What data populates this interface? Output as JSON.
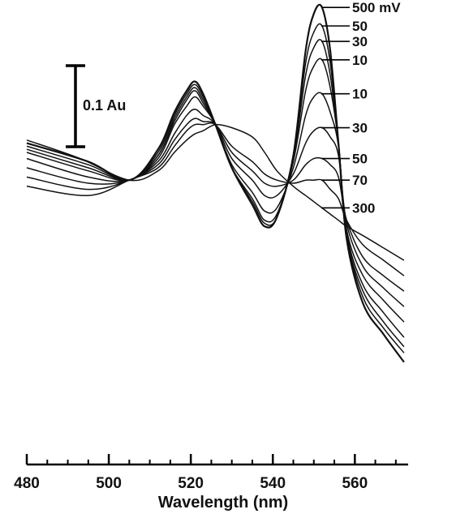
{
  "chart_data": {
    "type": "line",
    "title": "",
    "xlabel": "Wavelength (nm)",
    "ylabel": "",
    "xlim": [
      480,
      573
    ],
    "ylim": [
      -1.0,
      0.38
    ],
    "grid": false,
    "legend": "right-labels",
    "x_ticks": [
      480,
      500,
      520,
      540,
      560
    ],
    "scale_bar": {
      "label": "0.1 Au",
      "value": 0.1
    },
    "series": [
      {
        "name": "500 mV",
        "points": [
          [
            480,
            0.0
          ],
          [
            495,
            -0.06
          ],
          [
            505,
            -0.12
          ],
          [
            512,
            -0.02
          ],
          [
            516,
            0.1
          ],
          [
            519,
            0.17
          ],
          [
            521,
            0.2
          ],
          [
            523,
            0.16
          ],
          [
            526,
            0.06
          ],
          [
            530,
            -0.08
          ],
          [
            535,
            -0.2
          ],
          [
            538,
            -0.27
          ],
          [
            541,
            -0.24
          ],
          [
            545,
            -0.04
          ],
          [
            548,
            0.3
          ],
          [
            550,
            0.42
          ],
          [
            552,
            0.44
          ],
          [
            554,
            0.3
          ],
          [
            556,
            0.0
          ],
          [
            558,
            -0.31
          ],
          [
            562,
            -0.52
          ],
          [
            567,
            -0.62
          ],
          [
            572,
            -0.71
          ]
        ]
      },
      {
        "name": "50",
        "points": [
          [
            480,
            -0.01
          ],
          [
            495,
            -0.07
          ],
          [
            505,
            -0.12
          ],
          [
            512,
            -0.03
          ],
          [
            516,
            0.09
          ],
          [
            519,
            0.16
          ],
          [
            521,
            0.19
          ],
          [
            523,
            0.15
          ],
          [
            526,
            0.06
          ],
          [
            530,
            -0.08
          ],
          [
            535,
            -0.2
          ],
          [
            538,
            -0.27
          ],
          [
            541,
            -0.24
          ],
          [
            545,
            -0.04
          ],
          [
            548,
            0.26
          ],
          [
            550,
            0.36
          ],
          [
            552,
            0.38
          ],
          [
            554,
            0.26
          ],
          [
            556,
            0.0
          ],
          [
            558,
            -0.3
          ],
          [
            562,
            -0.5
          ],
          [
            567,
            -0.6
          ],
          [
            572,
            -0.68
          ]
        ]
      },
      {
        "name": "30",
        "points": [
          [
            480,
            -0.02
          ],
          [
            495,
            -0.08
          ],
          [
            505,
            -0.12
          ],
          [
            512,
            -0.04
          ],
          [
            516,
            0.08
          ],
          [
            519,
            0.15
          ],
          [
            521,
            0.18
          ],
          [
            523,
            0.14
          ],
          [
            526,
            0.06
          ],
          [
            530,
            -0.08
          ],
          [
            535,
            -0.19
          ],
          [
            538,
            -0.26
          ],
          [
            541,
            -0.24
          ],
          [
            545,
            -0.05
          ],
          [
            548,
            0.22
          ],
          [
            550,
            0.31
          ],
          [
            552,
            0.33
          ],
          [
            554,
            0.22
          ],
          [
            556,
            0.0
          ],
          [
            558,
            -0.3
          ],
          [
            562,
            -0.48
          ],
          [
            567,
            -0.58
          ],
          [
            572,
            -0.66
          ]
        ]
      },
      {
        "name": "10",
        "points": [
          [
            480,
            -0.03
          ],
          [
            495,
            -0.09
          ],
          [
            505,
            -0.12
          ],
          [
            512,
            -0.04
          ],
          [
            516,
            0.07
          ],
          [
            519,
            0.14
          ],
          [
            521,
            0.17
          ],
          [
            523,
            0.13
          ],
          [
            526,
            0.06
          ],
          [
            530,
            -0.08
          ],
          [
            535,
            -0.18
          ],
          [
            538,
            -0.25
          ],
          [
            541,
            -0.23
          ],
          [
            545,
            -0.06
          ],
          [
            548,
            0.17
          ],
          [
            550,
            0.25
          ],
          [
            552,
            0.27
          ],
          [
            554,
            0.18
          ],
          [
            556,
            0.0
          ],
          [
            558,
            -0.29
          ],
          [
            562,
            -0.46
          ],
          [
            567,
            -0.55
          ],
          [
            572,
            -0.63
          ]
        ]
      },
      {
        "name": "10",
        "points": [
          [
            480,
            -0.05
          ],
          [
            495,
            -0.11
          ],
          [
            505,
            -0.12
          ],
          [
            512,
            -0.05
          ],
          [
            516,
            0.06
          ],
          [
            519,
            0.12
          ],
          [
            521,
            0.15
          ],
          [
            523,
            0.12
          ],
          [
            526,
            0.06
          ],
          [
            530,
            -0.07
          ],
          [
            535,
            -0.16
          ],
          [
            538,
            -0.22
          ],
          [
            541,
            -0.21
          ],
          [
            545,
            -0.08
          ],
          [
            548,
            0.09
          ],
          [
            550,
            0.15
          ],
          [
            552,
            0.16
          ],
          [
            554,
            0.1
          ],
          [
            556,
            -0.01
          ],
          [
            558,
            -0.28
          ],
          [
            562,
            -0.43
          ],
          [
            567,
            -0.51
          ],
          [
            572,
            -0.58
          ]
        ]
      },
      {
        "name": "30",
        "points": [
          [
            480,
            -0.08
          ],
          [
            495,
            -0.13
          ],
          [
            505,
            -0.12
          ],
          [
            512,
            -0.06
          ],
          [
            516,
            0.03
          ],
          [
            519,
            0.09
          ],
          [
            521,
            0.11
          ],
          [
            523,
            0.09
          ],
          [
            526,
            0.06
          ],
          [
            530,
            -0.05
          ],
          [
            535,
            -0.12
          ],
          [
            538,
            -0.17
          ],
          [
            541,
            -0.17
          ],
          [
            545,
            -0.1
          ],
          [
            548,
            0.0
          ],
          [
            550,
            0.04
          ],
          [
            552,
            0.05
          ],
          [
            554,
            0.02
          ],
          [
            556,
            -0.04
          ],
          [
            558,
            -0.26
          ],
          [
            562,
            -0.4
          ],
          [
            567,
            -0.47
          ],
          [
            572,
            -0.53
          ]
        ]
      },
      {
        "name": "50",
        "points": [
          [
            480,
            -0.11
          ],
          [
            495,
            -0.15
          ],
          [
            505,
            -0.12
          ],
          [
            512,
            -0.07
          ],
          [
            516,
            0.01
          ],
          [
            519,
            0.06
          ],
          [
            521,
            0.08
          ],
          [
            523,
            0.07
          ],
          [
            526,
            0.06
          ],
          [
            530,
            -0.03
          ],
          [
            535,
            -0.09
          ],
          [
            538,
            -0.13
          ],
          [
            541,
            -0.14
          ],
          [
            545,
            -0.12
          ],
          [
            548,
            -0.07
          ],
          [
            550,
            -0.05
          ],
          [
            552,
            -0.05
          ],
          [
            554,
            -0.07
          ],
          [
            556,
            -0.11
          ],
          [
            558,
            -0.25
          ],
          [
            562,
            -0.37
          ],
          [
            567,
            -0.43
          ],
          [
            572,
            -0.48
          ]
        ]
      },
      {
        "name": "70",
        "points": [
          [
            480,
            -0.14
          ],
          [
            495,
            -0.17
          ],
          [
            505,
            -0.12
          ],
          [
            512,
            -0.08
          ],
          [
            516,
            -0.01
          ],
          [
            519,
            0.04
          ],
          [
            521,
            0.06
          ],
          [
            523,
            0.06
          ],
          [
            526,
            0.06
          ],
          [
            530,
            -0.01
          ],
          [
            535,
            -0.06
          ],
          [
            538,
            -0.1
          ],
          [
            541,
            -0.12
          ],
          [
            545,
            -0.13
          ],
          [
            548,
            -0.12
          ],
          [
            550,
            -0.12
          ],
          [
            552,
            -0.12
          ],
          [
            554,
            -0.15
          ],
          [
            556,
            -0.18
          ],
          [
            558,
            -0.25
          ],
          [
            562,
            -0.33
          ],
          [
            567,
            -0.38
          ],
          [
            572,
            -0.43
          ]
        ]
      },
      {
        "name": "300",
        "points": [
          [
            480,
            0.01
          ],
          [
            493,
            -0.05
          ],
          [
            505,
            -0.12
          ],
          [
            512,
            -0.09
          ],
          [
            516,
            -0.03
          ],
          [
            519,
            0.01
          ],
          [
            521,
            0.03
          ],
          [
            523,
            0.04
          ],
          [
            526,
            0.06
          ],
          [
            530,
            0.05
          ],
          [
            535,
            0.02
          ],
          [
            538,
            -0.03
          ],
          [
            541,
            -0.09
          ],
          [
            545,
            -0.14
          ],
          [
            548,
            -0.17
          ],
          [
            550,
            -0.19
          ],
          [
            552,
            -0.21
          ],
          [
            554,
            -0.23
          ],
          [
            556,
            -0.25
          ],
          [
            558,
            -0.27
          ],
          [
            562,
            -0.3
          ],
          [
            567,
            -0.34
          ],
          [
            572,
            -0.38
          ]
        ]
      }
    ]
  }
}
